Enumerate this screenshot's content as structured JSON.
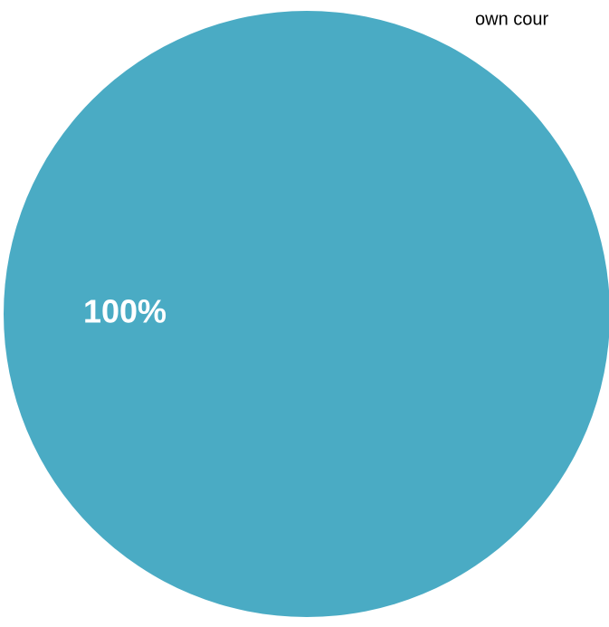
{
  "chart_data": {
    "type": "pie",
    "categories": [
      "own cour"
    ],
    "values": [
      100
    ],
    "value_labels": [
      "100%"
    ],
    "colors": [
      "#4aabc4"
    ]
  }
}
